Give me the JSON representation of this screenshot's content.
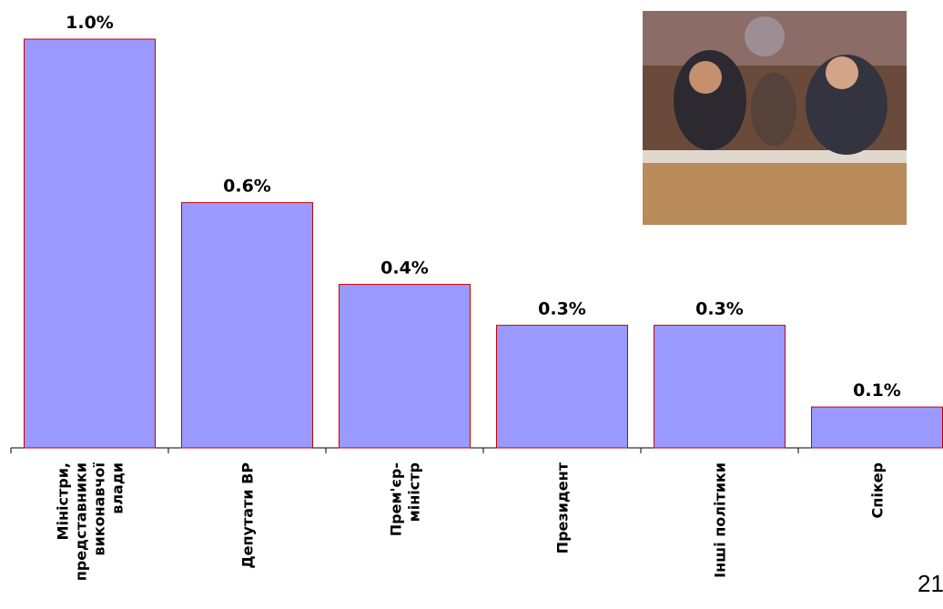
{
  "chart_data": {
    "type": "bar",
    "categories": [
      [
        "Міністри,",
        "представники",
        "виконавчої",
        "влади"
      ],
      [
        "Депутати ВР"
      ],
      [
        "Прем'єр-",
        "міністр"
      ],
      [
        "Президент"
      ],
      [
        "Інші політики"
      ],
      [
        "Спікер"
      ]
    ],
    "values": [
      1.0,
      0.6,
      0.4,
      0.3,
      0.3,
      0.1
    ],
    "value_labels": [
      "1.0%",
      "0.6%",
      "0.4%",
      "0.3%",
      "0.3%",
      "0.1%"
    ],
    "color": "#9999ff"
  },
  "page_number": "21"
}
